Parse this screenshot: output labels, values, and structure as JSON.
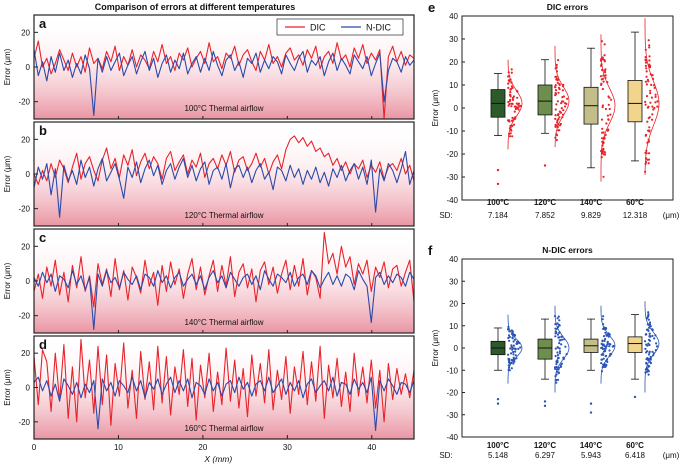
{
  "figure_title": "Comparison of errors at different temperatures",
  "colors": {
    "dic": "#e8232a",
    "ndic": "#2b4aa8",
    "shade": "#e07a8a",
    "box100": "#2d5a2a",
    "box120": "#6e8e4e",
    "box140": "#c3bd8a",
    "box60": "#f2d58c",
    "dic_points": "#e8232a",
    "ndic_points": "#2b55b5"
  },
  "chart_data": [
    {
      "panel": "a",
      "type": "line",
      "annotation": "100°C Thermal airflow",
      "ylabel": "Error (μm)",
      "xlabel": "",
      "xlim": [
        0,
        45
      ],
      "ylim": [
        -30,
        30
      ],
      "yticks": [
        20,
        0,
        -20
      ],
      "legend": [
        "DIC",
        "N-DIC"
      ],
      "legend_position": "top-right",
      "series": [
        {
          "name": "DIC",
          "values": [
            5,
            15,
            0,
            5,
            -4,
            2,
            10,
            4,
            -2,
            8,
            0,
            6,
            -3,
            11,
            2,
            5,
            -1,
            9,
            3,
            12,
            -2,
            6,
            1,
            10,
            0,
            7,
            4,
            -1,
            9,
            3,
            13,
            2,
            6,
            -2,
            8,
            4,
            11,
            0,
            5,
            9,
            2,
            14,
            3,
            6,
            -1,
            8,
            5,
            12,
            1,
            7,
            10,
            3,
            -2,
            9,
            4,
            13,
            2,
            6,
            0,
            8,
            11,
            4,
            7,
            1,
            10,
            5,
            12,
            -1,
            6,
            9,
            2,
            14,
            4,
            7,
            0,
            11,
            5,
            13,
            2,
            8,
            4,
            10,
            -30,
            6,
            12,
            3,
            9,
            1,
            7,
            5
          ]
        },
        {
          "name": "N-DIC",
          "values": [
            10,
            -5,
            3,
            -8,
            6,
            -3,
            8,
            -2,
            4,
            -6,
            2,
            -4,
            7,
            -1,
            -28,
            5,
            -3,
            6,
            -2,
            3,
            8,
            -5,
            1,
            6,
            -4,
            3,
            9,
            -2,
            5,
            -6,
            2,
            7,
            -3,
            4,
            -1,
            8,
            -4,
            2,
            6,
            -3,
            5,
            -2,
            9,
            1,
            -5,
            4,
            7,
            -2,
            3,
            -6,
            5,
            2,
            8,
            -3,
            4,
            -1,
            6,
            3,
            -4,
            7,
            2,
            -2,
            5,
            9,
            -3,
            4,
            1,
            6,
            -5,
            3,
            8,
            -2,
            5,
            1,
            -4,
            7,
            3,
            -1,
            6,
            -5,
            2,
            8,
            -20,
            -2,
            5,
            3,
            -3,
            6,
            1,
            4
          ]
        }
      ]
    },
    {
      "panel": "b",
      "type": "line",
      "annotation": "120°C Thermal airflow",
      "ylabel": "Error (μm)",
      "xlabel": "",
      "xlim": [
        0,
        45
      ],
      "ylim": [
        -30,
        30
      ],
      "yticks": [
        20,
        0,
        -20
      ],
      "series": [
        {
          "name": "DIC",
          "values": [
            0,
            -6,
            2,
            -4,
            6,
            -2,
            8,
            3,
            -5,
            4,
            12,
            -3,
            6,
            10,
            2,
            -4,
            8,
            15,
            3,
            9,
            -2,
            11,
            5,
            14,
            -1,
            7,
            12,
            3,
            10,
            6,
            -3,
            9,
            13,
            2,
            7,
            11,
            0,
            8,
            4,
            12,
            -2,
            6,
            9,
            3,
            11,
            5,
            13,
            1,
            8,
            10,
            2,
            6,
            12,
            4,
            9,
            0,
            7,
            11,
            3,
            14,
            20,
            22,
            18,
            21,
            16,
            19,
            13,
            15,
            10,
            12,
            5,
            9,
            2,
            7,
            0,
            6,
            3,
            8,
            -2,
            5,
            1,
            7,
            -3,
            4,
            6,
            2,
            9,
            0,
            5,
            -4
          ]
        },
        {
          "name": "N-DIC",
          "values": [
            -8,
            4,
            -3,
            6,
            -12,
            3,
            -25,
            5,
            -4,
            2,
            -6,
            8,
            -2,
            4,
            -7,
            3,
            9,
            -4,
            1,
            6,
            -3,
            -14,
            4,
            -2,
            7,
            -5,
            3,
            8,
            -1,
            5,
            -6,
            2,
            6,
            -3,
            4,
            9,
            -2,
            5,
            -4,
            3,
            7,
            -6,
            2,
            4,
            -3,
            6,
            -8,
            3,
            5,
            -2,
            4,
            -5,
            2,
            6,
            -3,
            1,
            -9,
            4,
            2,
            -4,
            5,
            -2,
            3,
            -6,
            2,
            -3,
            4,
            -5,
            1,
            -7,
            3,
            -2,
            5,
            -4,
            2,
            6,
            -3,
            4,
            -6,
            8,
            -22,
            3,
            -4,
            6,
            2,
            -5,
            3,
            13,
            -6,
            2
          ]
        }
      ]
    },
    {
      "panel": "c",
      "type": "line",
      "annotation": "140°C Thermal airflow",
      "ylabel": "Error (μm)",
      "xlabel": "",
      "xlim": [
        0,
        45
      ],
      "ylim": [
        -30,
        30
      ],
      "yticks": [
        20,
        0,
        -20
      ],
      "series": [
        {
          "name": "DIC",
          "values": [
            -6,
            4,
            -10,
            8,
            -3,
            12,
            -8,
            5,
            -12,
            9,
            -4,
            14,
            -6,
            3,
            -15,
            10,
            -2,
            7,
            -9,
            13,
            -5,
            6,
            -11,
            8,
            2,
            -7,
            12,
            -3,
            5,
            -14,
            9,
            -6,
            11,
            -2,
            7,
            -10,
            4,
            13,
            -5,
            8,
            -8,
            3,
            12,
            -6,
            9,
            -3,
            14,
            -9,
            5,
            10,
            -4,
            7,
            -12,
            6,
            11,
            -2,
            8,
            -7,
            4,
            12,
            -5,
            9,
            -3,
            13,
            -8,
            6,
            2,
            -10,
            28,
            10,
            16,
            4,
            20,
            8,
            14,
            -2,
            10,
            4,
            12,
            -6,
            8,
            2,
            11,
            -4,
            7,
            9,
            -3,
            5,
            12,
            -12
          ]
        },
        {
          "name": "N-DIC",
          "values": [
            2,
            -3,
            5,
            -1,
            4,
            -6,
            3,
            1,
            -4,
            6,
            -2,
            3,
            -5,
            2,
            -28,
            4,
            -3,
            6,
            -1,
            2,
            -4,
            5,
            1,
            -2,
            3,
            -5,
            4,
            2,
            -3,
            6,
            -1,
            3,
            -4,
            2,
            5,
            -3,
            1,
            4,
            -2,
            3,
            -5,
            2,
            6,
            -1,
            3,
            -4,
            5,
            1,
            -3,
            2,
            4,
            -2,
            3,
            -5,
            6,
            1,
            -3,
            4,
            2,
            -1,
            5,
            -3,
            2,
            4,
            -2,
            6,
            3,
            -4,
            1,
            5,
            -2,
            3,
            -3,
            4,
            2,
            -5,
            6,
            1,
            -3,
            -24,
            2,
            5,
            -2,
            3,
            -1,
            4,
            2,
            -3,
            5,
            1
          ]
        }
      ]
    },
    {
      "panel": "d",
      "type": "line",
      "annotation": "160°C Thermal airflow",
      "ylabel": "Error (μm)",
      "xlabel": "X (mm)",
      "xlim": [
        0,
        45
      ],
      "ylim": [
        -30,
        30
      ],
      "yticks": [
        20,
        0,
        -20
      ],
      "xticks": [
        0,
        10,
        20,
        30,
        40
      ],
      "series": [
        {
          "name": "DIC",
          "values": [
            18,
            -10,
            22,
            15,
            -14,
            20,
            -8,
            25,
            -18,
            12,
            -20,
            28,
            -6,
            16,
            -15,
            24,
            -10,
            19,
            -22,
            14,
            -5,
            26,
            -12,
            10,
            -18,
            21,
            -7,
            15,
            -13,
            24,
            -9,
            18,
            -16,
            12,
            -4,
            22,
            -11,
            17,
            -19,
            13,
            -6,
            20,
            -14,
            9,
            -10,
            23,
            -8,
            16,
            -12,
            11,
            -17,
            19,
            -5,
            14,
            -9,
            22,
            -13,
            10,
            -7,
            18,
            -15,
            12,
            -4,
            21,
            -10,
            15,
            -8,
            24,
            -18,
            13,
            -6,
            17,
            -11,
            9,
            -14,
            20,
            -5,
            12,
            -9,
            16,
            -12,
            10,
            -20,
            14,
            -7,
            11,
            -4,
            8,
            -6,
            10
          ]
        },
        {
          "name": "N-DIC",
          "values": [
            3,
            6,
            -2,
            4,
            -5,
            2,
            -8,
            5,
            1,
            -4,
            3,
            -6,
            2,
            -3,
            4,
            -24,
            5,
            -2,
            3,
            -5,
            4,
            1,
            -3,
            6,
            -2,
            4,
            -6,
            3,
            -1,
            5,
            -4,
            2,
            6,
            -3,
            4,
            -2,
            5,
            -6,
            3,
            1,
            -4,
            5,
            -2,
            3,
            -5,
            2,
            4,
            -3,
            6,
            -1,
            3,
            -5,
            2,
            4,
            -2,
            6,
            -3,
            1,
            5,
            -4,
            3,
            -2,
            4,
            -6,
            2,
            5,
            -3,
            1,
            4,
            -2,
            6,
            -5,
            3,
            2,
            -4,
            5,
            -1,
            3,
            -3,
            6,
            -25,
            4,
            -2,
            5,
            1,
            -4,
            3,
            2,
            -3,
            4
          ]
        }
      ]
    },
    {
      "panel": "e",
      "type": "box",
      "title": "DIC errors",
      "ylabel": "Error (μm)",
      "ylim": [
        -40,
        40
      ],
      "yticks": [
        40,
        30,
        20,
        10,
        0,
        -10,
        -20,
        -30,
        -40
      ],
      "sd_label": "SD:",
      "sd_unit": "(μm)",
      "groups": [
        {
          "label": "100°C",
          "sd": "7.184",
          "min": -12,
          "q1": -4,
          "median": 2,
          "q3": 8,
          "max": 15,
          "outliers": [
            -27,
            -33
          ]
        },
        {
          "label": "120°C",
          "sd": "7.852",
          "min": -11,
          "q1": -3,
          "median": 3,
          "q3": 10,
          "max": 21,
          "outliers": [
            -25
          ]
        },
        {
          "label": "140°C",
          "sd": "9.829",
          "min": -26,
          "q1": -7,
          "median": 1,
          "q3": 9,
          "max": 26,
          "outliers": []
        },
        {
          "label": "60°C",
          "sd": "12.318",
          "min": -23,
          "q1": -6,
          "median": 2,
          "q3": 12,
          "max": 33,
          "outliers": []
        }
      ]
    },
    {
      "panel": "f",
      "type": "box",
      "title": "N-DIC errors",
      "ylabel": "Error (μm)",
      "ylim": [
        -40,
        40
      ],
      "yticks": [
        40,
        30,
        20,
        10,
        0,
        -10,
        -20,
        -30,
        -40
      ],
      "sd_label": "SD:",
      "sd_unit": "(μm)",
      "groups": [
        {
          "label": "100°C",
          "sd": "5.148",
          "min": -10,
          "q1": -3,
          "median": 0,
          "q3": 3,
          "max": 9,
          "outliers": [
            -23,
            -25
          ]
        },
        {
          "label": "120°C",
          "sd": "6.297",
          "min": -14,
          "q1": -5,
          "median": 0,
          "q3": 4,
          "max": 13,
          "outliers": [
            -24,
            -26
          ]
        },
        {
          "label": "140°C",
          "sd": "5.943",
          "min": -10,
          "q1": -2,
          "median": 1,
          "q3": 4,
          "max": 13,
          "outliers": [
            -25,
            -29
          ]
        },
        {
          "label": "60°C",
          "sd": "6.418",
          "min": -14,
          "q1": -2,
          "median": 2,
          "q3": 5,
          "max": 15,
          "outliers": [
            -22
          ]
        }
      ]
    }
  ]
}
